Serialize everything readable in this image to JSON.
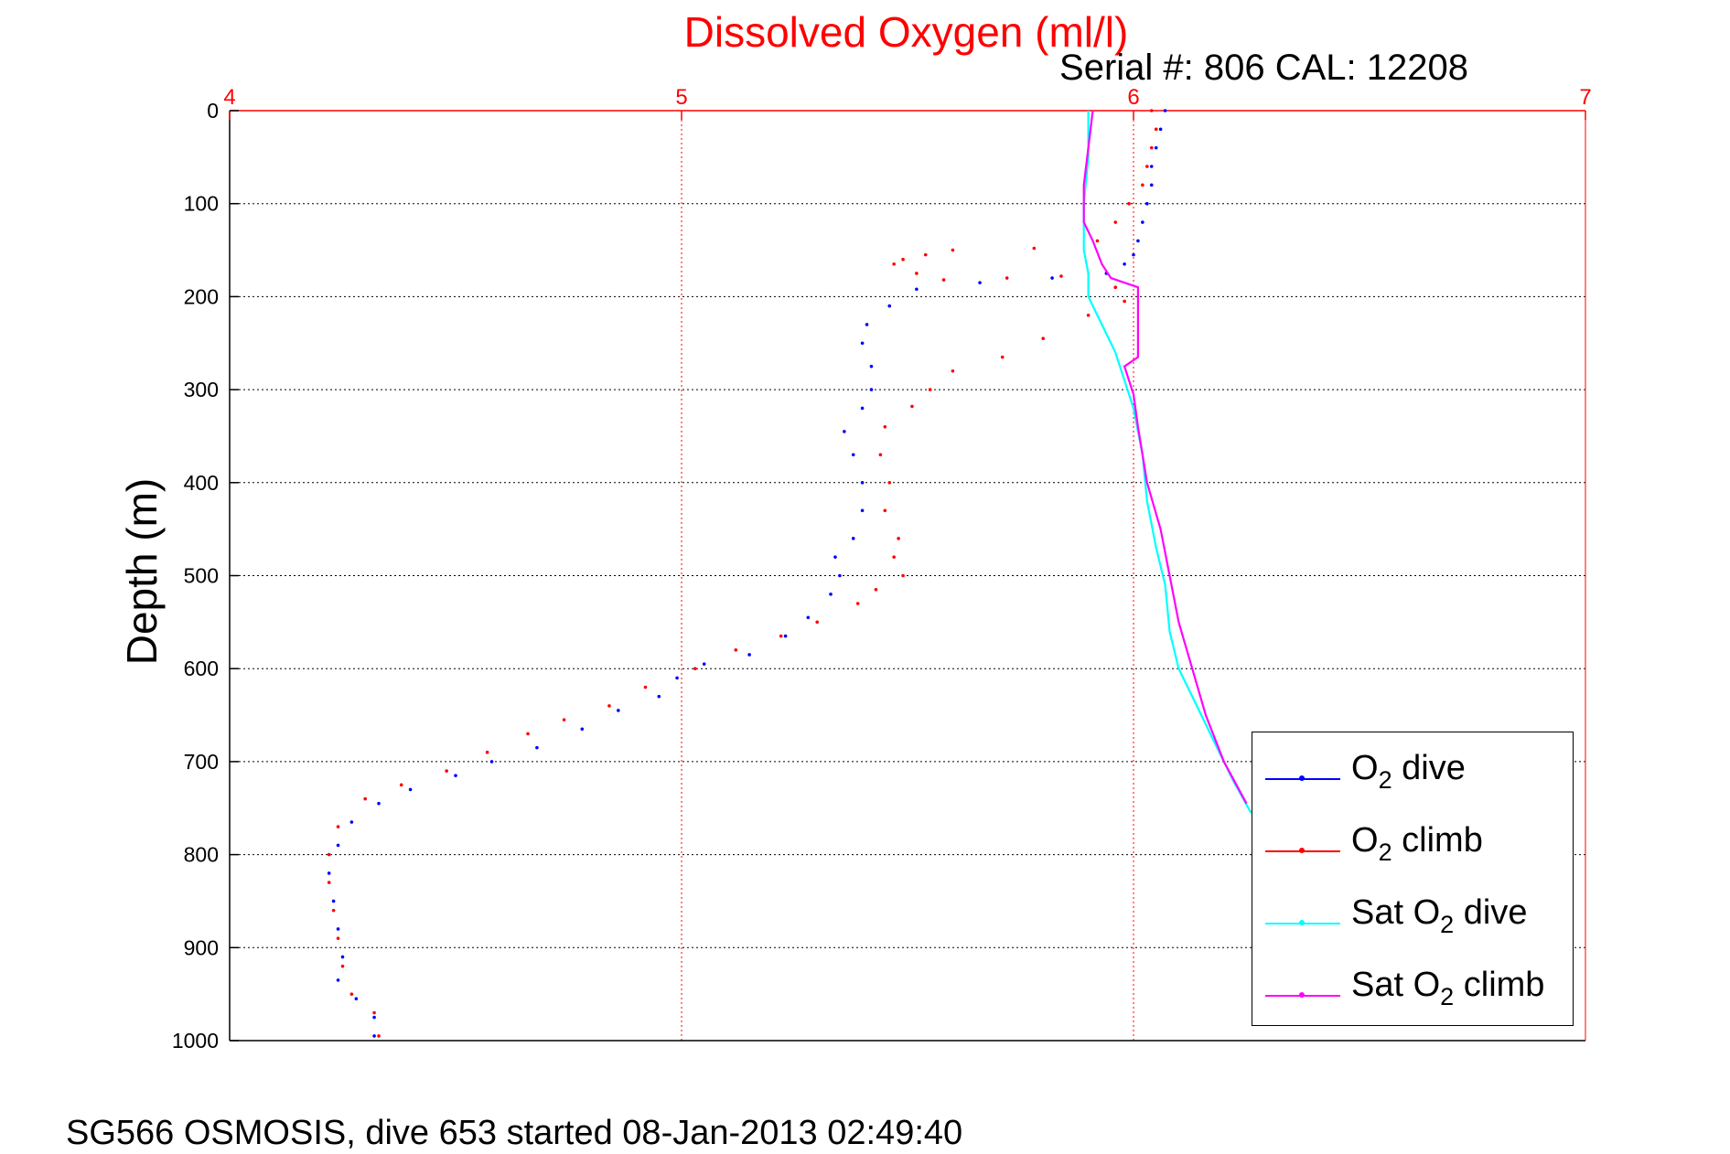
{
  "chart_data": {
    "type": "scatter",
    "title": "Dissolved Oxygen (ml/l)",
    "subtitle": "Serial #: 806  CAL: 12208",
    "ylabel": "Depth (m)",
    "footer": "SG566 OSMOSIS, dive 653 started 08-Jan-2013 02:49:40",
    "xlim": [
      4,
      7
    ],
    "ylim": [
      0,
      1000
    ],
    "y_reversed": true,
    "x_axis_position": "top",
    "x_ticks": [
      "4",
      "5",
      "6",
      "7"
    ],
    "y_ticks": [
      "0",
      "100",
      "200",
      "300",
      "400",
      "500",
      "600",
      "700",
      "800",
      "900",
      "1000"
    ],
    "grid": true,
    "legend_position": "bottom-right",
    "axis_color": "#ff0000",
    "series": [
      {
        "name": "O2 dive",
        "label_parts": [
          "O",
          "2",
          " dive"
        ],
        "color": "#0000ff",
        "style": "dots",
        "points": [
          [
            6.07,
            0
          ],
          [
            6.06,
            20
          ],
          [
            6.05,
            40
          ],
          [
            6.04,
            60
          ],
          [
            6.04,
            80
          ],
          [
            6.03,
            100
          ],
          [
            6.02,
            120
          ],
          [
            6.01,
            140
          ],
          [
            6.0,
            155
          ],
          [
            5.98,
            165
          ],
          [
            5.94,
            175
          ],
          [
            5.82,
            180
          ],
          [
            5.66,
            185
          ],
          [
            5.52,
            192
          ],
          [
            5.46,
            210
          ],
          [
            5.41,
            230
          ],
          [
            5.4,
            250
          ],
          [
            5.42,
            275
          ],
          [
            5.42,
            300
          ],
          [
            5.4,
            320
          ],
          [
            5.36,
            345
          ],
          [
            5.38,
            370
          ],
          [
            5.4,
            400
          ],
          [
            5.4,
            430
          ],
          [
            5.38,
            460
          ],
          [
            5.34,
            480
          ],
          [
            5.35,
            500
          ],
          [
            5.33,
            520
          ],
          [
            5.28,
            545
          ],
          [
            5.23,
            565
          ],
          [
            5.15,
            585
          ],
          [
            5.05,
            595
          ],
          [
            4.99,
            610
          ],
          [
            4.95,
            630
          ],
          [
            4.86,
            645
          ],
          [
            4.78,
            665
          ],
          [
            4.68,
            685
          ],
          [
            4.58,
            700
          ],
          [
            4.5,
            715
          ],
          [
            4.4,
            730
          ],
          [
            4.33,
            745
          ],
          [
            4.27,
            765
          ],
          [
            4.24,
            790
          ],
          [
            4.22,
            820
          ],
          [
            4.23,
            850
          ],
          [
            4.24,
            880
          ],
          [
            4.25,
            910
          ],
          [
            4.24,
            935
          ],
          [
            4.28,
            955
          ],
          [
            4.32,
            975
          ],
          [
            4.32,
            995
          ]
        ]
      },
      {
        "name": "O2 climb",
        "label_parts": [
          "O",
          "2",
          " climb"
        ],
        "color": "#ff0000",
        "style": "dots",
        "points": [
          [
            6.04,
            0
          ],
          [
            6.05,
            20
          ],
          [
            6.04,
            40
          ],
          [
            6.03,
            60
          ],
          [
            6.02,
            80
          ],
          [
            5.99,
            100
          ],
          [
            5.96,
            120
          ],
          [
            5.92,
            140
          ],
          [
            5.78,
            148
          ],
          [
            5.6,
            150
          ],
          [
            5.54,
            155
          ],
          [
            5.49,
            160
          ],
          [
            5.47,
            165
          ],
          [
            5.52,
            175
          ],
          [
            5.58,
            182
          ],
          [
            5.72,
            180
          ],
          [
            5.84,
            178
          ],
          [
            5.96,
            190
          ],
          [
            5.98,
            205
          ],
          [
            5.9,
            220
          ],
          [
            5.8,
            245
          ],
          [
            5.71,
            265
          ],
          [
            5.6,
            280
          ],
          [
            5.55,
            300
          ],
          [
            5.51,
            318
          ],
          [
            5.45,
            340
          ],
          [
            5.44,
            370
          ],
          [
            5.46,
            400
          ],
          [
            5.45,
            430
          ],
          [
            5.48,
            460
          ],
          [
            5.47,
            480
          ],
          [
            5.49,
            500
          ],
          [
            5.43,
            515
          ],
          [
            5.39,
            530
          ],
          [
            5.3,
            550
          ],
          [
            5.22,
            565
          ],
          [
            5.12,
            580
          ],
          [
            5.03,
            600
          ],
          [
            4.92,
            620
          ],
          [
            4.84,
            640
          ],
          [
            4.74,
            655
          ],
          [
            4.66,
            670
          ],
          [
            4.57,
            690
          ],
          [
            4.48,
            710
          ],
          [
            4.38,
            725
          ],
          [
            4.3,
            740
          ],
          [
            4.24,
            770
          ],
          [
            4.22,
            800
          ],
          [
            4.22,
            830
          ],
          [
            4.23,
            860
          ],
          [
            4.24,
            890
          ],
          [
            4.25,
            920
          ],
          [
            4.27,
            950
          ],
          [
            4.32,
            970
          ],
          [
            4.33,
            995
          ]
        ]
      },
      {
        "name": "Sat O2 dive",
        "label_parts": [
          "Sat O",
          "2",
          " dive"
        ],
        "color": "#00ffff",
        "style": "line",
        "points": [
          [
            5.9,
            0
          ],
          [
            5.9,
            50
          ],
          [
            5.89,
            100
          ],
          [
            5.89,
            150
          ],
          [
            5.9,
            175
          ],
          [
            5.9,
            200
          ],
          [
            5.93,
            230
          ],
          [
            5.96,
            260
          ],
          [
            5.98,
            290
          ],
          [
            6.0,
            320
          ],
          [
            6.02,
            370
          ],
          [
            6.03,
            420
          ],
          [
            6.05,
            470
          ],
          [
            6.07,
            510
          ],
          [
            6.08,
            560
          ],
          [
            6.1,
            600
          ],
          [
            6.14,
            640
          ],
          [
            6.18,
            680
          ],
          [
            6.22,
            720
          ],
          [
            6.26,
            755
          ]
        ]
      },
      {
        "name": "Sat O2 climb",
        "label_parts": [
          "Sat O",
          "2",
          " climb"
        ],
        "color": "#ff00ff",
        "style": "line",
        "points": [
          [
            5.91,
            0
          ],
          [
            5.9,
            40
          ],
          [
            5.89,
            80
          ],
          [
            5.89,
            120
          ],
          [
            5.91,
            140
          ],
          [
            5.93,
            165
          ],
          [
            5.95,
            180
          ],
          [
            6.01,
            190
          ],
          [
            6.01,
            230
          ],
          [
            6.01,
            265
          ],
          [
            5.98,
            275
          ],
          [
            6.0,
            305
          ],
          [
            6.01,
            340
          ],
          [
            6.03,
            400
          ],
          [
            6.06,
            450
          ],
          [
            6.08,
            500
          ],
          [
            6.1,
            550
          ],
          [
            6.13,
            600
          ],
          [
            6.16,
            650
          ],
          [
            6.2,
            700
          ],
          [
            6.25,
            745
          ]
        ]
      }
    ]
  }
}
